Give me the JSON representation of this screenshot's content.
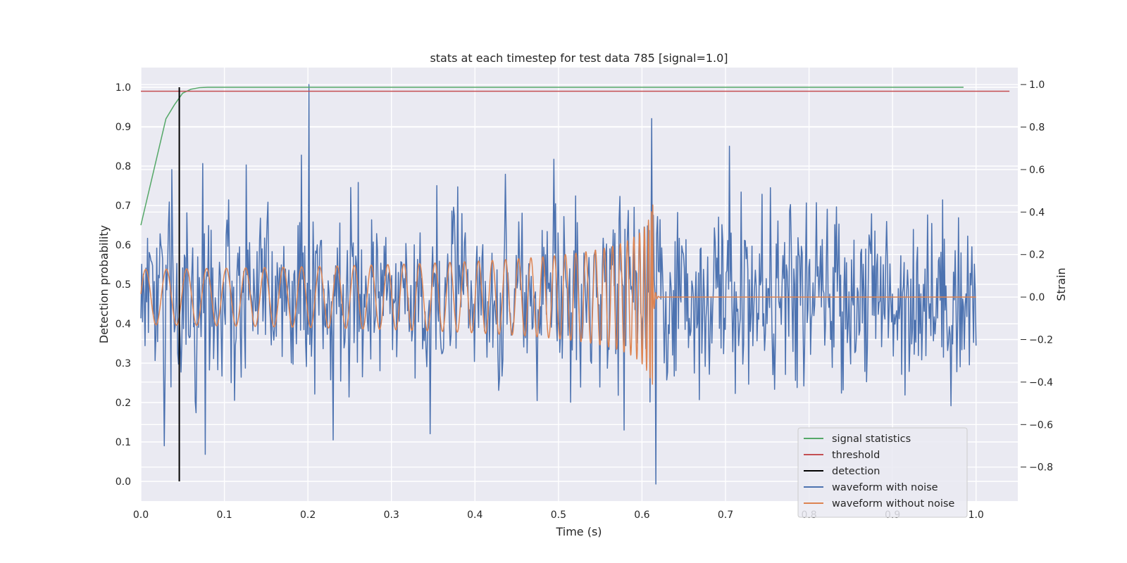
{
  "chart_data": {
    "type": "line",
    "title": "stats at each timestep for test data 785 [signal=1.0]",
    "xlabel": "Time (s)",
    "ylabel_left": "Detection probability",
    "ylabel_right": "Strain",
    "xlim": [
      0.0,
      1.05
    ],
    "ylim_left": [
      -0.05,
      1.05
    ],
    "ylim_right": [
      -0.96,
      1.08
    ],
    "xticks": [
      "0.0",
      "0.1",
      "0.2",
      "0.3",
      "0.4",
      "0.5",
      "0.6",
      "0.7",
      "0.8",
      "0.9",
      "1.0"
    ],
    "xtick_values": [
      0.0,
      0.1,
      0.2,
      0.3,
      0.4,
      0.5,
      0.6,
      0.7,
      0.8,
      0.9,
      1.0
    ],
    "yticks_left": [
      "0.0",
      "0.1",
      "0.2",
      "0.3",
      "0.4",
      "0.5",
      "0.6",
      "0.7",
      "0.8",
      "0.9",
      "1.0"
    ],
    "ytick_values_left": [
      0.0,
      0.1,
      0.2,
      0.3,
      0.4,
      0.5,
      0.6,
      0.7,
      0.8,
      0.9,
      1.0
    ],
    "yticks_right": [
      "−0.8",
      "−0.6",
      "−0.4",
      "−0.2",
      "0.0",
      "0.2",
      "0.4",
      "0.6",
      "0.8",
      "1.0"
    ],
    "ytick_values_right": [
      -0.8,
      -0.6,
      -0.4,
      -0.2,
      0.0,
      0.2,
      0.4,
      0.6,
      0.8,
      1.0
    ],
    "grid": true,
    "legend_position": "bottom-right",
    "series": [
      {
        "name": "signal statistics",
        "axis": "left",
        "color": "#55a868",
        "x": [
          0.0,
          0.01,
          0.02,
          0.03,
          0.04,
          0.05,
          0.06,
          0.07,
          0.08,
          0.1,
          0.2,
          0.4,
          0.6,
          0.8,
          0.985
        ],
        "y": [
          0.65,
          0.74,
          0.83,
          0.92,
          0.955,
          0.985,
          0.995,
          0.999,
          1.0,
          1.0,
          1.0,
          1.0,
          1.0,
          1.0,
          1.0
        ]
      },
      {
        "name": "threshold",
        "axis": "left",
        "color": "#c44e52",
        "x": [
          0.0,
          1.04
        ],
        "y": [
          0.99,
          0.99
        ]
      },
      {
        "name": "detection",
        "axis": "left",
        "color": "#000000",
        "x": [
          0.046,
          0.046
        ],
        "y": [
          0.0,
          1.0
        ]
      },
      {
        "name": "waveform with noise",
        "axis": "right",
        "color": "#4c72b0",
        "generated": true,
        "points": 1000,
        "std": 0.2,
        "x_end": 1.0,
        "spikes": [
          {
            "x": 0.201,
            "y": 1.0
          },
          {
            "x": 0.612,
            "y": 0.84
          },
          {
            "x": 0.617,
            "y": -0.88
          },
          {
            "x": 0.705,
            "y": 0.71
          },
          {
            "x": 0.037,
            "y": 0.6
          },
          {
            "x": 0.028,
            "y": -0.7
          },
          {
            "x": 0.077,
            "y": -0.74
          }
        ]
      },
      {
        "name": "waveform without noise",
        "axis": "right",
        "color": "#dd8452",
        "generated": true,
        "start_amplitude": 0.13,
        "peak_amplitude": 0.52,
        "start_frequency_hz": 40,
        "merger_time": 0.613,
        "x_end": 1.0
      }
    ]
  }
}
